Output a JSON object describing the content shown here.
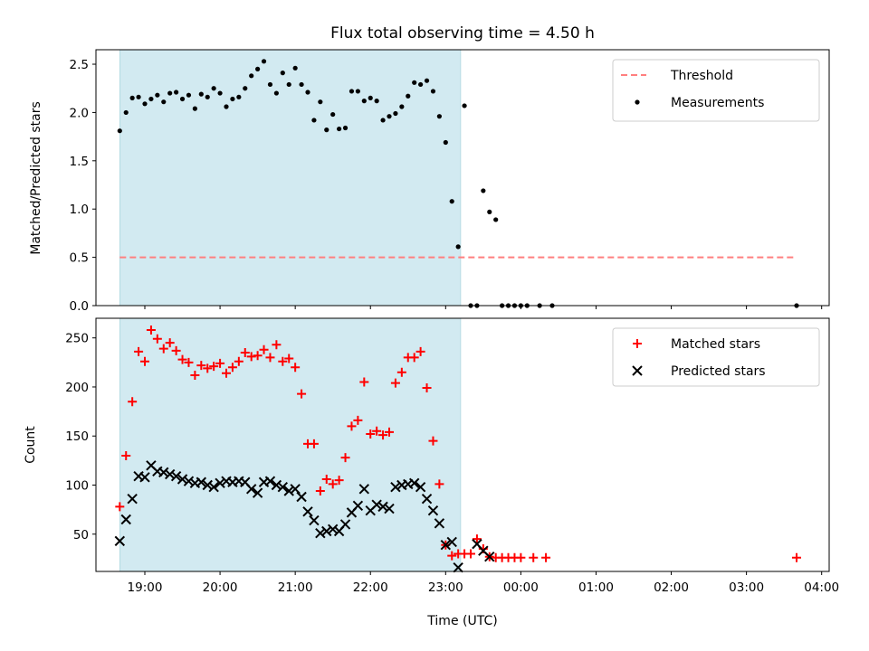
{
  "chart_data": [
    {
      "type": "scatter",
      "title": "Flux total observing time = 4.50 h",
      "xlabel": "",
      "ylabel": "Matched/Predicted stars",
      "ylim": [
        0,
        2.65
      ],
      "yticks": [
        0.0,
        0.5,
        1.0,
        1.5,
        2.0,
        2.5
      ],
      "ytick_labels": [
        "0.0",
        "0.5",
        "1.0",
        "1.5",
        "2.0",
        "2.5"
      ],
      "xlim": [
        "18:21",
        "04:06"
      ],
      "xticks": [
        "19:00",
        "20:00",
        "21:00",
        "22:00",
        "23:00",
        "00:00",
        "01:00",
        "02:00",
        "03:00",
        "04:00"
      ],
      "shaded_interval": [
        "18:40",
        "23:12"
      ],
      "shade_color": "#add8e6",
      "legend_position": "upper right",
      "grid": false,
      "series": [
        {
          "name": "Threshold",
          "kind": "dashed-line",
          "color": "#ff7f7f",
          "points": [
            [
              "18:40",
              0.5
            ],
            [
              "23:55",
              0.5
            ],
            [
              "03:40",
              0.5
            ]
          ]
        },
        {
          "name": "Measurements",
          "kind": "dot",
          "color": "#000000",
          "points": [
            [
              "18:40",
              1.81
            ],
            [
              "18:45",
              2.0
            ],
            [
              "18:50",
              2.15
            ],
            [
              "18:55",
              2.16
            ],
            [
              "19:00",
              2.09
            ],
            [
              "19:05",
              2.14
            ],
            [
              "19:10",
              2.18
            ],
            [
              "19:15",
              2.11
            ],
            [
              "19:20",
              2.2
            ],
            [
              "19:25",
              2.21
            ],
            [
              "19:30",
              2.14
            ],
            [
              "19:35",
              2.18
            ],
            [
              "19:40",
              2.04
            ],
            [
              "19:45",
              2.19
            ],
            [
              "19:50",
              2.16
            ],
            [
              "19:55",
              2.25
            ],
            [
              "20:00",
              2.2
            ],
            [
              "20:05",
              2.06
            ],
            [
              "20:10",
              2.14
            ],
            [
              "20:15",
              2.16
            ],
            [
              "20:20",
              2.25
            ],
            [
              "20:25",
              2.38
            ],
            [
              "20:30",
              2.45
            ],
            [
              "20:35",
              2.53
            ],
            [
              "20:40",
              2.29
            ],
            [
              "20:45",
              2.2
            ],
            [
              "20:50",
              2.41
            ],
            [
              "20:55",
              2.29
            ],
            [
              "21:00",
              2.46
            ],
            [
              "21:05",
              2.29
            ],
            [
              "21:10",
              2.21
            ],
            [
              "21:15",
              1.92
            ],
            [
              "21:20",
              2.11
            ],
            [
              "21:25",
              1.82
            ],
            [
              "21:30",
              1.98
            ],
            [
              "21:35",
              1.83
            ],
            [
              "21:40",
              1.84
            ],
            [
              "21:45",
              2.22
            ],
            [
              "21:50",
              2.22
            ],
            [
              "21:55",
              2.12
            ],
            [
              "22:00",
              2.15
            ],
            [
              "22:05",
              2.12
            ],
            [
              "22:10",
              1.92
            ],
            [
              "22:15",
              1.96
            ],
            [
              "22:20",
              1.99
            ],
            [
              "22:25",
              2.06
            ],
            [
              "22:30",
              2.17
            ],
            [
              "22:35",
              2.31
            ],
            [
              "22:40",
              2.29
            ],
            [
              "22:45",
              2.33
            ],
            [
              "22:50",
              2.22
            ],
            [
              "22:55",
              1.96
            ],
            [
              "23:00",
              1.69
            ],
            [
              "23:05",
              1.08
            ],
            [
              "23:10",
              0.61
            ],
            [
              "23:15",
              2.07
            ],
            [
              "23:20",
              0.0
            ],
            [
              "23:25",
              0.0
            ],
            [
              "23:30",
              1.19
            ],
            [
              "23:35",
              0.97
            ],
            [
              "23:40",
              0.89
            ],
            [
              "23:45",
              0.0
            ],
            [
              "23:50",
              0.0
            ],
            [
              "23:55",
              0.0
            ],
            [
              "00:00",
              0.0
            ],
            [
              "00:05",
              0.0
            ],
            [
              "00:15",
              0.0
            ],
            [
              "00:25",
              0.0
            ],
            [
              "03:40",
              0.0
            ]
          ]
        }
      ]
    },
    {
      "type": "scatter",
      "title": "",
      "xlabel": "Time (UTC)",
      "ylabel": "Count",
      "ylim": [
        12,
        270
      ],
      "yticks": [
        50,
        100,
        150,
        200,
        250
      ],
      "ytick_labels": [
        "50",
        "100",
        "150",
        "200",
        "250"
      ],
      "xlim": [
        "18:21",
        "04:06"
      ],
      "xticks": [
        "19:00",
        "20:00",
        "21:00",
        "22:00",
        "23:00",
        "00:00",
        "01:00",
        "02:00",
        "03:00",
        "04:00"
      ],
      "xtick_labels": [
        "19:00",
        "20:00",
        "21:00",
        "22:00",
        "23:00",
        "00:00",
        "01:00",
        "02:00",
        "03:00",
        "04:00"
      ],
      "shaded_interval": [
        "18:40",
        "23:12"
      ],
      "shade_color": "#add8e6",
      "legend_position": "upper right",
      "grid": false,
      "series": [
        {
          "name": "Matched stars",
          "kind": "plus",
          "color": "#ff0000",
          "points": [
            [
              "18:40",
              78
            ],
            [
              "18:45",
              130
            ],
            [
              "18:50",
              185
            ],
            [
              "18:55",
              236
            ],
            [
              "19:00",
              226
            ],
            [
              "19:05",
              258
            ],
            [
              "19:10",
              249
            ],
            [
              "19:15",
              239
            ],
            [
              "19:20",
              245
            ],
            [
              "19:25",
              237
            ],
            [
              "19:30",
              228
            ],
            [
              "19:35",
              225
            ],
            [
              "19:40",
              212
            ],
            [
              "19:45",
              222
            ],
            [
              "19:50",
              219
            ],
            [
              "19:55",
              221
            ],
            [
              "20:00",
              224
            ],
            [
              "20:05",
              214
            ],
            [
              "20:10",
              220
            ],
            [
              "20:15",
              226
            ],
            [
              "20:20",
              235
            ],
            [
              "20:25",
              231
            ],
            [
              "20:30",
              232
            ],
            [
              "20:35",
              238
            ],
            [
              "20:40",
              230
            ],
            [
              "20:45",
              243
            ],
            [
              "20:50",
              226
            ],
            [
              "20:55",
              229
            ],
            [
              "21:00",
              220
            ],
            [
              "21:05",
              193
            ],
            [
              "21:10",
              142
            ],
            [
              "21:15",
              142
            ],
            [
              "21:20",
              94
            ],
            [
              "21:25",
              106
            ],
            [
              "21:30",
              101
            ],
            [
              "21:35",
              105
            ],
            [
              "21:40",
              128
            ],
            [
              "21:45",
              160
            ],
            [
              "21:50",
              166
            ],
            [
              "21:55",
              205
            ],
            [
              "22:00",
              152
            ],
            [
              "22:05",
              155
            ],
            [
              "22:10",
              151
            ],
            [
              "22:15",
              154
            ],
            [
              "22:20",
              204
            ],
            [
              "22:25",
              215
            ],
            [
              "22:30",
              230
            ],
            [
              "22:35",
              230
            ],
            [
              "22:40",
              236
            ],
            [
              "22:45",
              199
            ],
            [
              "22:50",
              145
            ],
            [
              "22:55",
              101
            ],
            [
              "23:00",
              39
            ],
            [
              "23:05",
              28
            ],
            [
              "23:10",
              30
            ],
            [
              "23:15",
              30
            ],
            [
              "23:20",
              30
            ],
            [
              "23:25",
              45
            ],
            [
              "23:30",
              35
            ],
            [
              "23:35",
              27
            ],
            [
              "23:40",
              26
            ],
            [
              "23:45",
              26
            ],
            [
              "23:50",
              26
            ],
            [
              "23:55",
              26
            ],
            [
              "00:00",
              26
            ],
            [
              "00:10",
              26
            ],
            [
              "00:20",
              26
            ],
            [
              "03:40",
              26
            ]
          ]
        },
        {
          "name": "Predicted stars",
          "kind": "x",
          "color": "#000000",
          "points": [
            [
              "18:40",
              43
            ],
            [
              "18:45",
              65
            ],
            [
              "18:50",
              86
            ],
            [
              "18:55",
              109
            ],
            [
              "19:00",
              108
            ],
            [
              "19:05",
              120
            ],
            [
              "19:10",
              114
            ],
            [
              "19:15",
              113
            ],
            [
              "19:20",
              111
            ],
            [
              "19:25",
              109
            ],
            [
              "19:30",
              106
            ],
            [
              "19:35",
              104
            ],
            [
              "19:40",
              102
            ],
            [
              "19:45",
              103
            ],
            [
              "19:50",
              100
            ],
            [
              "19:55",
              98
            ],
            [
              "20:00",
              102
            ],
            [
              "20:05",
              104
            ],
            [
              "20:10",
              103
            ],
            [
              "20:15",
              104
            ],
            [
              "20:20",
              103
            ],
            [
              "20:25",
              96
            ],
            [
              "20:30",
              92
            ],
            [
              "20:35",
              103
            ],
            [
              "20:40",
              104
            ],
            [
              "20:45",
              100
            ],
            [
              "20:50",
              98
            ],
            [
              "20:55",
              94
            ],
            [
              "21:00",
              96
            ],
            [
              "21:05",
              88
            ],
            [
              "21:10",
              73
            ],
            [
              "21:15",
              64
            ],
            [
              "21:20",
              51
            ],
            [
              "21:25",
              53
            ],
            [
              "21:30",
              55
            ],
            [
              "21:35",
              53
            ],
            [
              "21:40",
              60
            ],
            [
              "21:45",
              72
            ],
            [
              "21:50",
              79
            ],
            [
              "21:55",
              96
            ],
            [
              "22:00",
              74
            ],
            [
              "22:05",
              80
            ],
            [
              "22:10",
              78
            ],
            [
              "22:15",
              76
            ],
            [
              "22:20",
              98
            ],
            [
              "22:25",
              100
            ],
            [
              "22:30",
              101
            ],
            [
              "22:35",
              102
            ],
            [
              "22:40",
              98
            ],
            [
              "22:45",
              86
            ],
            [
              "22:50",
              74
            ],
            [
              "22:55",
              61
            ],
            [
              "23:00",
              39
            ],
            [
              "23:05",
              42
            ],
            [
              "23:10",
              16
            ],
            [
              "23:25",
              40
            ],
            [
              "23:30",
              33
            ],
            [
              "23:35",
              27
            ]
          ]
        }
      ]
    }
  ]
}
